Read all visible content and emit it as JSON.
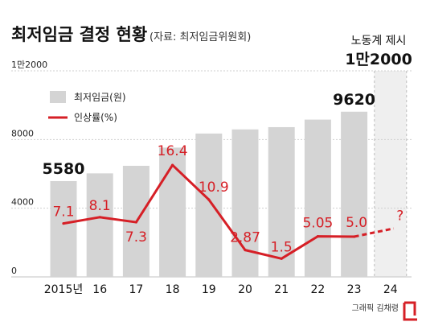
{
  "header": {
    "title": "최저임금 결정 현황",
    "source": "(자료: 최저임금위원회)"
  },
  "legend": {
    "bar_label": "최저임금(원)",
    "line_label": "인상률(%)"
  },
  "proposal": {
    "label": "노동계 제시",
    "value_label": "1만2000"
  },
  "footer": {
    "credit": "그래픽 김채령"
  },
  "colors": {
    "bar": "#d4d4d4",
    "line": "#d61f26",
    "proposal_bg": "#efefef",
    "grid": "#cfcfcf"
  },
  "chart_data": {
    "type": "bar",
    "title": "최저임금 결정 현황",
    "categories": [
      "2015년",
      "16",
      "17",
      "18",
      "19",
      "20",
      "21",
      "22",
      "23",
      "24"
    ],
    "y_ticks": [
      "0",
      "4000",
      "8000",
      "1만2000"
    ],
    "y_tick_values": [
      0,
      4000,
      8000,
      12000
    ],
    "ylim": [
      0,
      12000
    ],
    "grid": true,
    "legend_position": "top-left",
    "series": [
      {
        "name": "최저임금(원)",
        "type": "bar",
        "values": [
          5580,
          6030,
          6470,
          7530,
          8350,
          8590,
          8720,
          9160,
          9620,
          null
        ],
        "value_labels": [
          "5580",
          "",
          "",
          "",
          "",
          "",
          "",
          "",
          "9620",
          ""
        ]
      },
      {
        "name": "인상률(%)",
        "type": "line",
        "values": [
          7.1,
          8.1,
          7.3,
          16.4,
          10.9,
          2.87,
          1.5,
          5.05,
          5.0,
          null
        ],
        "value_labels": [
          "7.1",
          "8.1",
          "7.3",
          "16.4",
          "10.9",
          "2.87",
          "1.5",
          "5.05",
          "5.0",
          "?"
        ],
        "projected": {
          "category": "24",
          "label": "?"
        }
      }
    ]
  }
}
